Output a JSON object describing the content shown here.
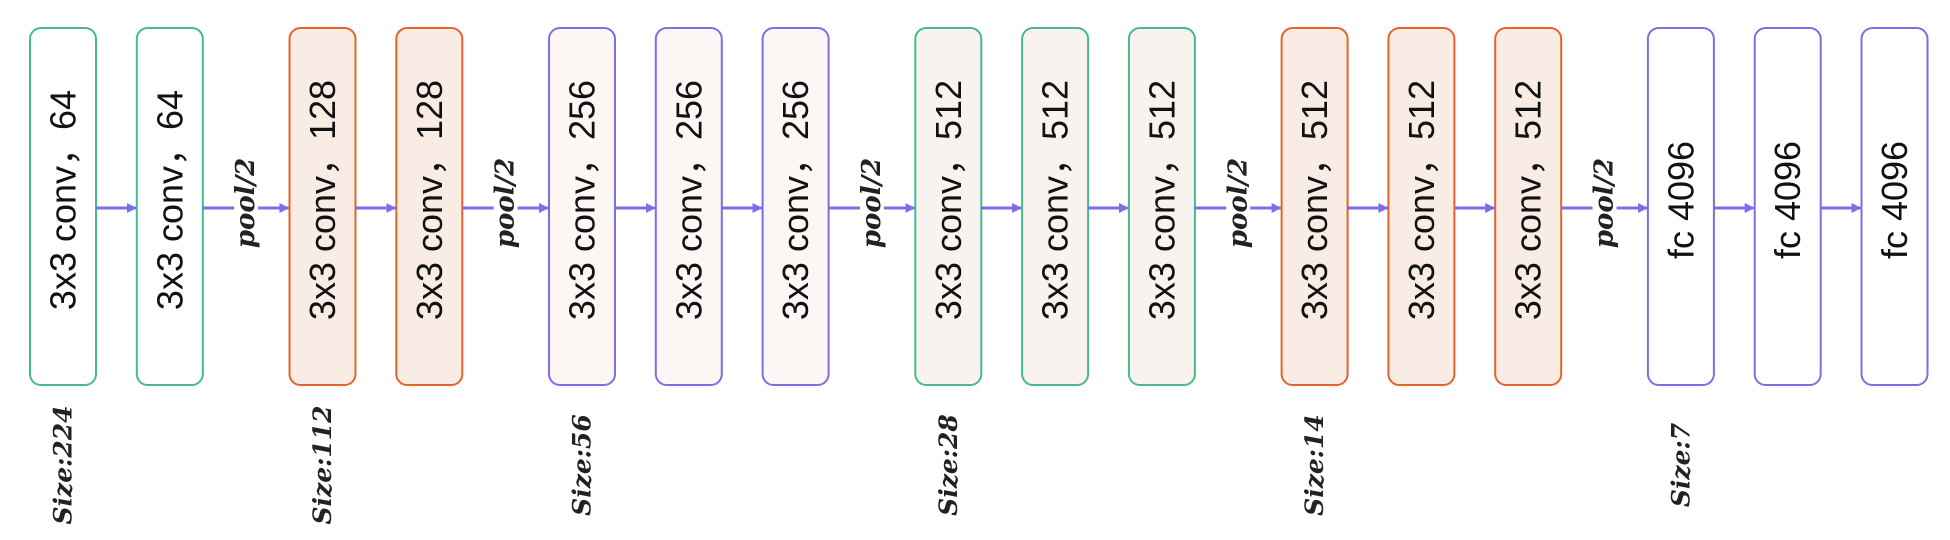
{
  "colors": {
    "arrow": "#7b6ee8",
    "green_border": "#46b990",
    "green_fill": "#ffffff",
    "green_fill_alt": "#f8f3ef",
    "orange_border": "#e8622a",
    "orange_fill": "#f9ece4",
    "purple_border": "#7b6ee8",
    "purple_fill": "#fcf7f4",
    "purple_fill_plain": "#ffffff"
  },
  "layers": [
    {
      "label": "3x3 conv，64",
      "style": "green",
      "fill_variant": "plain"
    },
    {
      "label": "3x3 conv，64",
      "style": "green",
      "fill_variant": "plain"
    },
    {
      "label": "3x3 conv，128",
      "style": "orange",
      "fill_variant": "tinted"
    },
    {
      "label": "3x3 conv，128",
      "style": "orange",
      "fill_variant": "tinted"
    },
    {
      "label": "3x3 conv，256",
      "style": "purple",
      "fill_variant": "tinted"
    },
    {
      "label": "3x3 conv，256",
      "style": "purple",
      "fill_variant": "tinted"
    },
    {
      "label": "3x3 conv，256",
      "style": "purple",
      "fill_variant": "tinted"
    },
    {
      "label": "3x3 conv，512",
      "style": "green",
      "fill_variant": "tinted"
    },
    {
      "label": "3x3 conv，512",
      "style": "green",
      "fill_variant": "tinted"
    },
    {
      "label": "3x3 conv，512",
      "style": "green",
      "fill_variant": "tinted"
    },
    {
      "label": "3x3 conv，512",
      "style": "orange",
      "fill_variant": "tinted"
    },
    {
      "label": "3x3 conv，512",
      "style": "orange",
      "fill_variant": "tinted"
    },
    {
      "label": "3x3 conv，512",
      "style": "orange",
      "fill_variant": "tinted"
    },
    {
      "label": "fc 4096",
      "style": "purple",
      "fill_variant": "plain"
    },
    {
      "label": "fc 4096",
      "style": "purple",
      "fill_variant": "plain"
    },
    {
      "label": "fc 4096",
      "style": "purple",
      "fill_variant": "plain"
    }
  ],
  "connections": [
    {
      "pool": ""
    },
    {
      "pool": "pool/2"
    },
    {
      "pool": ""
    },
    {
      "pool": "pool/2"
    },
    {
      "pool": ""
    },
    {
      "pool": ""
    },
    {
      "pool": "pool/2"
    },
    {
      "pool": ""
    },
    {
      "pool": ""
    },
    {
      "pool": "pool/2"
    },
    {
      "pool": ""
    },
    {
      "pool": ""
    },
    {
      "pool": "pool/2"
    },
    {
      "pool": ""
    },
    {
      "pool": ""
    }
  ],
  "sizes": [
    {
      "label": "Size:224",
      "at_layer": 0
    },
    {
      "label": "Size:112",
      "at_layer": 2
    },
    {
      "label": "Size:56",
      "at_layer": 4
    },
    {
      "label": "Size:28",
      "at_layer": 7
    },
    {
      "label": "Size:14",
      "at_layer": 10
    },
    {
      "label": "Size:7",
      "at_layer": 13
    }
  ]
}
